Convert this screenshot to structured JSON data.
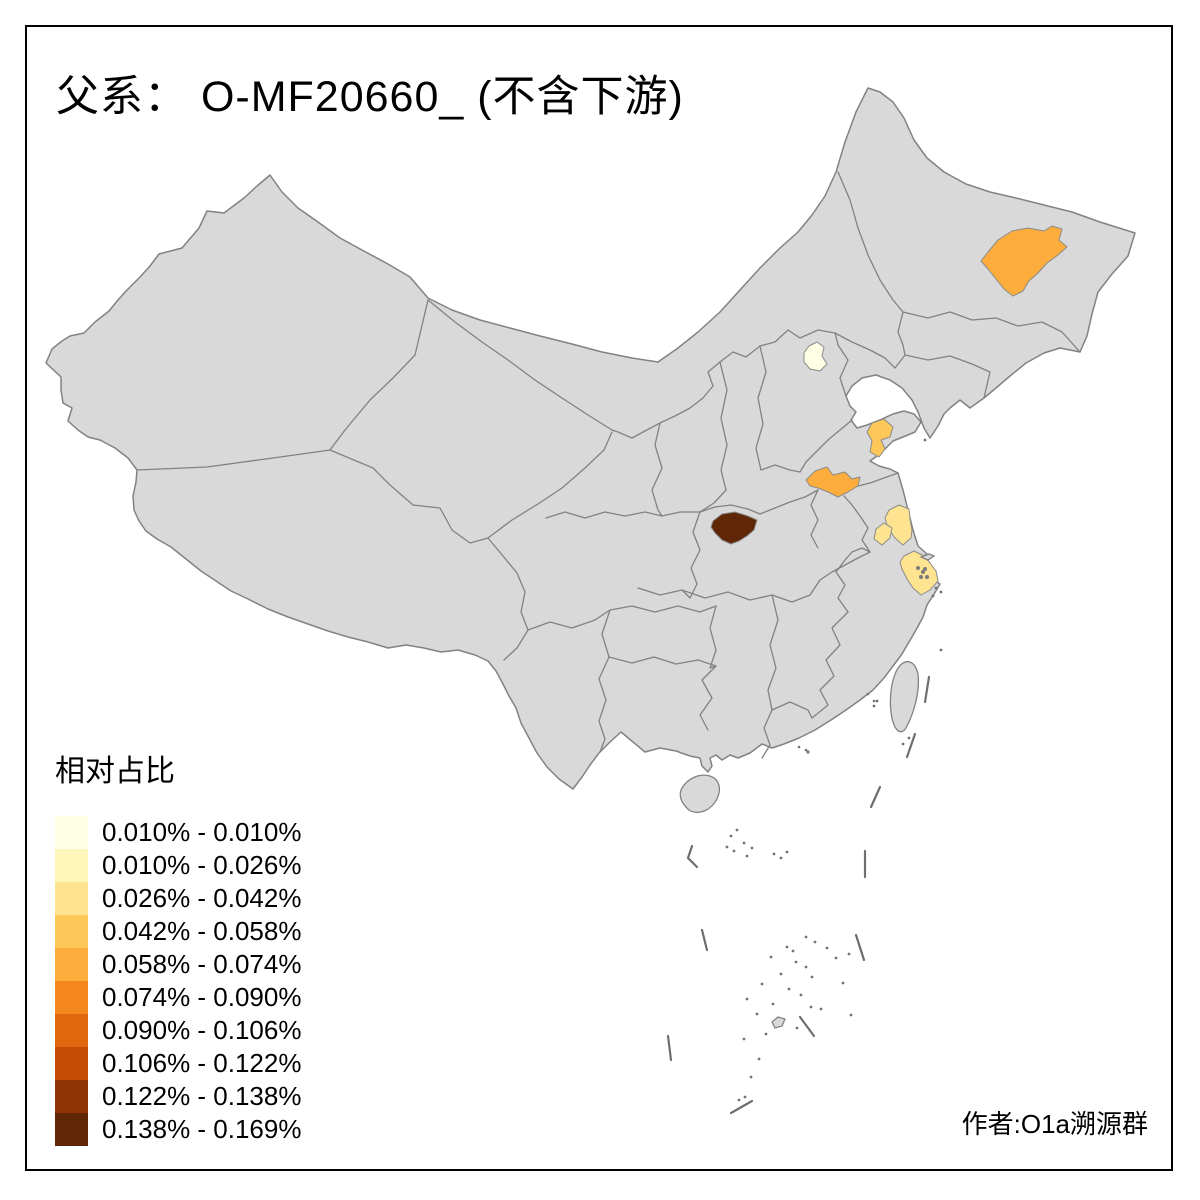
{
  "title": "父系： O-MF20660_ (不含下游)",
  "legend": {
    "title": "相对占比",
    "classes": [
      {
        "range": "0.010% - 0.010%",
        "color": "#FFFFE5"
      },
      {
        "range": "0.010% - 0.026%",
        "color": "#FEF6BA"
      },
      {
        "range": "0.026% - 0.042%",
        "color": "#FEE491"
      },
      {
        "range": "0.042% - 0.058%",
        "color": "#FEC75A"
      },
      {
        "range": "0.058% - 0.074%",
        "color": "#FDAD3C"
      },
      {
        "range": "0.074% - 0.090%",
        "color": "#F4881E"
      },
      {
        "range": "0.090% - 0.106%",
        "color": "#E06910"
      },
      {
        "range": "0.106% - 0.122%",
        "color": "#C44D03"
      },
      {
        "range": "0.122% - 0.138%",
        "color": "#8E3304"
      },
      {
        "range": "0.138% - 0.169%",
        "color": "#5F2706"
      }
    ]
  },
  "attribution": "作者:O1a溯源群",
  "map": {
    "base_fill": "#D9D9D9",
    "border_color": "#828282",
    "sea_color": "#FFFFFF",
    "highlighted_regions": [
      {
        "id": "northeast-region",
        "class_index": 4
      },
      {
        "id": "beijing-region",
        "class_index": 0
      },
      {
        "id": "shandong-coast-region",
        "class_index": 3
      },
      {
        "id": "north-jiangsu-region",
        "class_index": 4
      },
      {
        "id": "central-jiangsu-region",
        "class_index": 2
      },
      {
        "id": "central-jiangsu-small-region",
        "class_index": 2
      },
      {
        "id": "zhejiang-coast-region",
        "class_index": 2
      },
      {
        "id": "northwest-hubei-region",
        "class_index": 9
      }
    ]
  }
}
